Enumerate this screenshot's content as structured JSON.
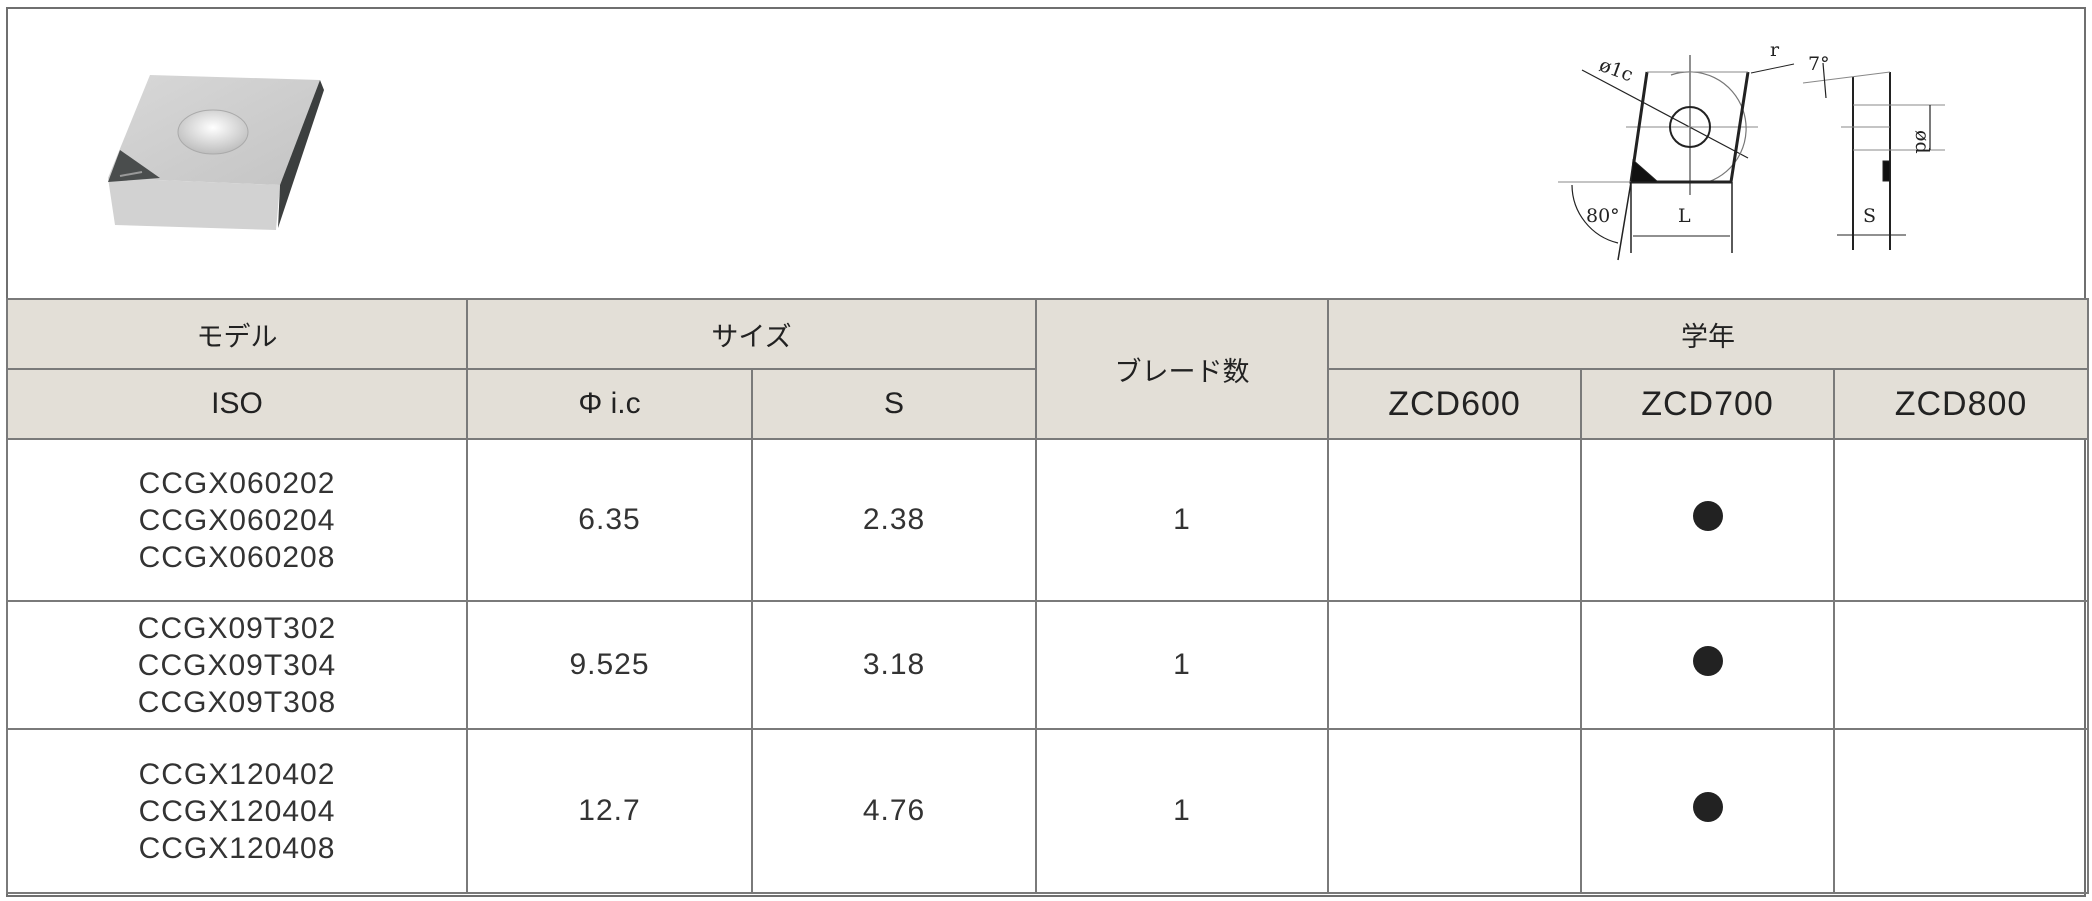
{
  "diagram": {
    "labels": {
      "ic": "ø1c",
      "r": "r",
      "angle_clearance": "7°",
      "d": "ød",
      "angle_corner": "80°",
      "L": "L",
      "S": "S"
    }
  },
  "table": {
    "headers": {
      "model": "モデル",
      "size": "サイズ",
      "blades": "ブレード数",
      "grade": "学年",
      "iso": "ISO",
      "ic": "Φ  i.c",
      "s": "S",
      "grades": [
        "ZCD600",
        "ZCD700",
        "ZCD800"
      ]
    },
    "rows": [
      {
        "models": [
          "CCGX060202",
          "CCGX060204",
          "CCGX060208"
        ],
        "ic": "6.35",
        "s": "2.38",
        "blades": "1",
        "grades": [
          false,
          true,
          false
        ]
      },
      {
        "models": [
          "CCGX09T302",
          "CCGX09T304",
          "CCGX09T308"
        ],
        "ic": "9.525",
        "s": "3.18",
        "blades": "1",
        "grades": [
          false,
          true,
          false
        ]
      },
      {
        "models": [
          "CCGX120402",
          "CCGX120404",
          "CCGX120408"
        ],
        "ic": "12.7",
        "s": "4.76",
        "blades": "1",
        "grades": [
          false,
          true,
          false
        ]
      }
    ]
  }
}
